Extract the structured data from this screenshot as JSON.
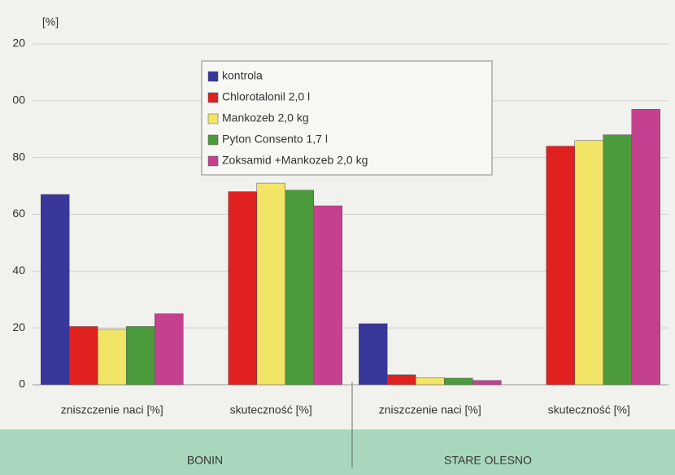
{
  "chart_data": {
    "type": "bar",
    "y_label": "[%]",
    "categories": [
      "zniszczenie naci [%]",
      "skuteczność [%]",
      "zniszczenie naci [%]",
      "skuteczność [%]"
    ],
    "groups": [
      "BONIN",
      "STARE OLESNO"
    ],
    "series": [
      {
        "name": "kontrola",
        "color": "#38379a",
        "values": [
          67,
          null,
          21.5,
          null
        ]
      },
      {
        "name": "Chlorotalonil 2,0 l",
        "color": "#e0211f",
        "values": [
          20.5,
          68,
          3.5,
          84
        ]
      },
      {
        "name": "Mankozeb 2,0 kg",
        "color": "#f2e466",
        "values": [
          19.5,
          71,
          2.5,
          86
        ]
      },
      {
        "name": "Pyton Consento 1,7 l",
        "color": "#4b9a3b",
        "values": [
          20.5,
          68.5,
          2.3,
          88
        ]
      },
      {
        "name": "Zoksamid +Mankozeb 2,0 kg",
        "color": "#c4418f",
        "values": [
          25,
          63,
          1.5,
          97
        ]
      }
    ],
    "ylim": [
      0,
      120
    ],
    "yticks": [
      0,
      20,
      40,
      60,
      80,
      {
        "value": 100,
        "label": "00"
      },
      {
        "value": 120,
        "label": "20"
      }
    ],
    "grid": true
  }
}
